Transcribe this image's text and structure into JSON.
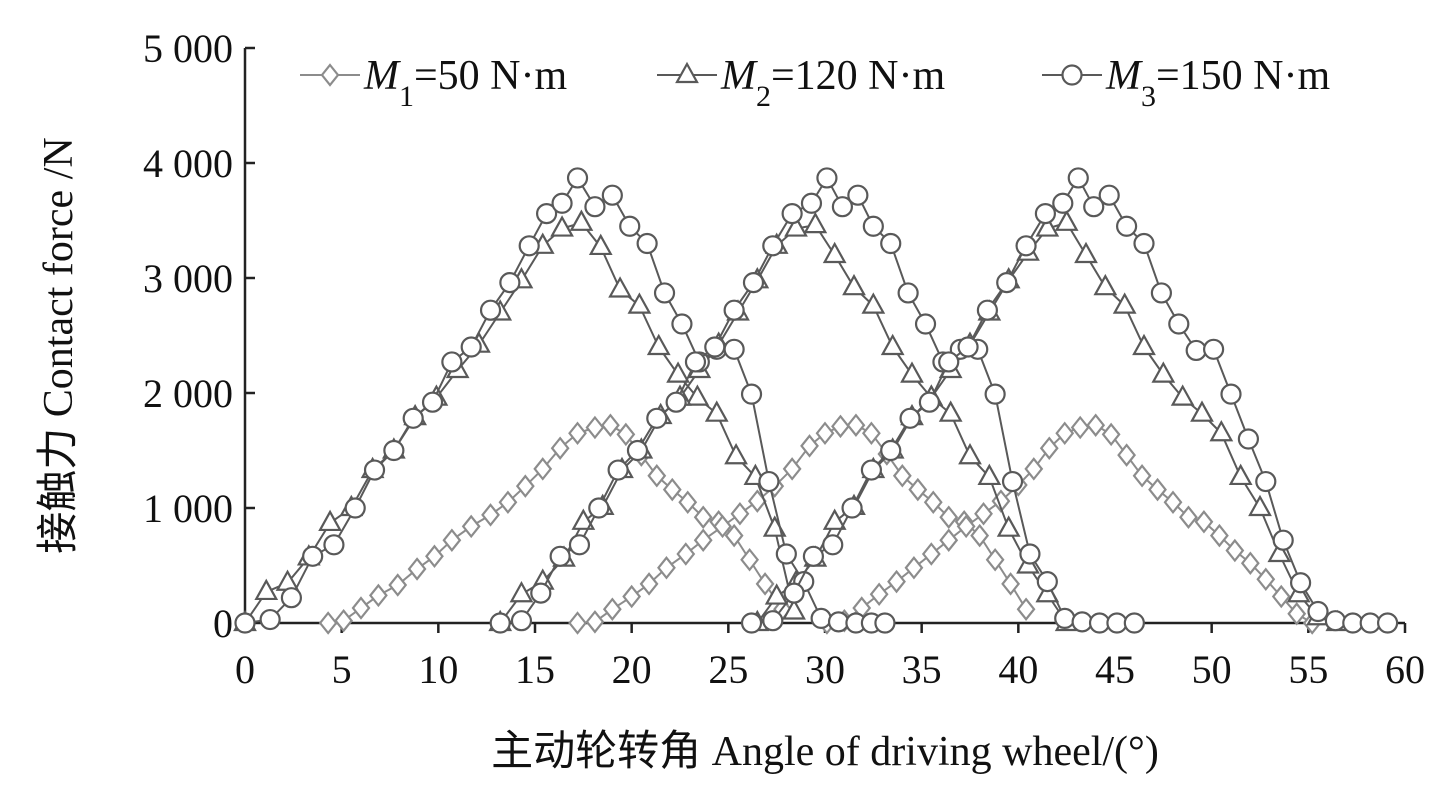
{
  "chart_data": {
    "type": "line",
    "title": "",
    "xlabel": "主动轮转角 Angle of driving wheel/(°)",
    "ylabel": "接触力 Contact force /N",
    "xlim": [
      0,
      60
    ],
    "ylim": [
      0,
      5000
    ],
    "x_ticks": [
      "0",
      "5",
      "10",
      "15",
      "20",
      "25",
      "30",
      "35",
      "40",
      "45",
      "50",
      "55",
      "60"
    ],
    "y_ticks": [
      "0",
      "1 000",
      "2 000",
      "3 000",
      "4 000",
      "5 000"
    ],
    "grid": false,
    "legend_position": "top",
    "series": [
      {
        "name": "M1=50 N·m",
        "legend": {
          "symbol": "M",
          "sub": "1",
          "rest": "=50 N·m"
        },
        "marker": "diamond",
        "color": "#8c8c8c",
        "teeth": [
          {
            "x": [
              4.3,
              5.1,
              6.0,
              6.9,
              7.9,
              8.9,
              9.8,
              10.7,
              11.7,
              12.7,
              13.6,
              14.5,
              15.4,
              16.3,
              17.2,
              18.1,
              18.9,
              19.7,
              20.5,
              21.3,
              22.1,
              22.9,
              23.7,
              24.5,
              25.3,
              26.1,
              26.9,
              27.8
            ],
            "y": [
              0,
              20,
              130,
              240,
              330,
              470,
              580,
              720,
              840,
              940,
              1050,
              1190,
              1340,
              1520,
              1650,
              1700,
              1720,
              1640,
              1460,
              1280,
              1160,
              1050,
              920,
              880,
              760,
              550,
              340,
              120
            ]
          },
          {
            "x": [
              17.2,
              18.1,
              19.0,
              20.0,
              20.9,
              21.8,
              22.8,
              23.7,
              24.7,
              25.6,
              26.5,
              27.4,
              28.3,
              29.2,
              30.0,
              30.8,
              31.6,
              32.4,
              33.2,
              34.0,
              34.8,
              35.6,
              36.4,
              37.2,
              38.0,
              38.8,
              39.6,
              40.4
            ],
            "y": [
              0,
              10,
              120,
              230,
              340,
              480,
              600,
              720,
              840,
              950,
              1060,
              1190,
              1340,
              1540,
              1650,
              1710,
              1720,
              1650,
              1470,
              1280,
              1160,
              1050,
              920,
              880,
              760,
              550,
              340,
              120
            ]
          },
          {
            "x": [
              30.1,
              31.0,
              31.9,
              32.8,
              33.7,
              34.6,
              35.5,
              36.4,
              37.3,
              38.2,
              39.1,
              40.0,
              40.8,
              41.6,
              42.4,
              43.2,
              44.0,
              44.8,
              45.6,
              46.4,
              47.2,
              48.0,
              48.8,
              49.6,
              50.4,
              51.2,
              52.0,
              52.8,
              53.6,
              54.4,
              55.2
            ],
            "y": [
              0,
              20,
              130,
              250,
              360,
              480,
              600,
              720,
              840,
              950,
              1060,
              1200,
              1340,
              1520,
              1650,
              1700,
              1720,
              1640,
              1460,
              1280,
              1160,
              1050,
              920,
              880,
              760,
              630,
              520,
              380,
              230,
              80,
              0
            ]
          }
        ]
      },
      {
        "name": "M2=120 N·m",
        "legend": {
          "symbol": "M",
          "sub": "2",
          "rest": "=120 N·m"
        },
        "marker": "triangle",
        "color": "#595959",
        "teeth": [
          {
            "x": [
              0.0,
              1.1,
              2.2,
              3.3,
              4.4,
              5.5,
              6.6,
              7.7,
              8.8,
              9.9,
              11.0,
              12.1,
              13.2,
              14.3,
              15.4,
              16.4,
              17.4,
              18.4,
              19.4,
              20.4,
              21.4,
              22.4,
              23.4,
              24.4,
              25.4,
              26.4,
              27.4,
              28.4
            ],
            "y": [
              0,
              270,
              350,
              570,
              870,
              1000,
              1330,
              1500,
              1790,
              1960,
              2200,
              2420,
              2700,
              2980,
              3280,
              3430,
              3480,
              3270,
              2900,
              2760,
              2400,
              2160,
              1960,
              1820,
              1450,
              1270,
              820,
              100
            ]
          },
          {
            "x": [
              13.2,
              14.3,
              15.4,
              16.5,
              17.5,
              18.5,
              19.5,
              20.5,
              21.5,
              22.5,
              23.5,
              24.5,
              25.5,
              26.5,
              27.5,
              28.5,
              29.5,
              30.5,
              31.5,
              32.5,
              33.5,
              34.5,
              35.5,
              36.5,
              37.5,
              38.5,
              39.5,
              40.5,
              41.5,
              42.5
            ],
            "y": [
              0,
              250,
              360,
              560,
              880,
              1010,
              1330,
              1500,
              1800,
              1960,
              2200,
              2420,
              2700,
              2980,
              3280,
              3430,
              3460,
              3200,
              2920,
              2760,
              2400,
              2160,
              1960,
              1820,
              1450,
              1270,
              820,
              500,
              250,
              0
            ]
          },
          {
            "x": [
              26.5,
              27.5,
              28.5,
              29.5,
              30.5,
              31.5,
              32.5,
              33.5,
              34.5,
              35.5,
              36.5,
              37.5,
              38.5,
              39.5,
              40.5,
              41.5,
              42.5,
              43.5,
              44.5,
              45.5,
              46.5,
              47.5,
              48.5,
              49.5,
              50.5,
              51.5,
              52.5,
              53.5,
              54.5,
              55.5,
              56.5
            ],
            "y": [
              0,
              230,
              350,
              560,
              880,
              1010,
              1330,
              1500,
              1790,
              1960,
              2200,
              2420,
              2700,
              2980,
              3220,
              3430,
              3480,
              3200,
              2920,
              2760,
              2400,
              2160,
              1960,
              1820,
              1650,
              1270,
              1000,
              600,
              250,
              50,
              0
            ]
          }
        ]
      },
      {
        "name": "M3=150 N·m",
        "legend": {
          "symbol": "M",
          "sub": "3",
          "rest": "=150 N·m"
        },
        "marker": "circle",
        "color": "#595959",
        "teeth": [
          {
            "x": [
              0.0,
              1.3,
              2.4,
              3.5,
              4.6,
              5.7,
              6.7,
              7.7,
              8.7,
              9.7,
              10.7,
              11.7,
              12.7,
              13.7,
              14.7,
              15.6,
              16.4,
              17.2,
              18.1,
              19.0,
              19.9,
              20.8,
              21.7,
              22.6,
              23.5,
              24.4,
              25.3,
              26.2,
              27.1,
              28.0,
              28.9,
              29.8,
              30.7,
              31.6,
              32.4,
              33.1
            ],
            "y": [
              0,
              30,
              220,
              580,
              680,
              1000,
              1330,
              1500,
              1780,
              1920,
              2270,
              2400,
              2720,
              2960,
              3280,
              3560,
              3650,
              3870,
              3620,
              3720,
              3450,
              3300,
              2870,
              2600,
              2270,
              2380,
              2380,
              1990,
              1230,
              600,
              360,
              40,
              10,
              0,
              0,
              0
            ]
          },
          {
            "x": [
              13.2,
              14.3,
              15.3,
              16.3,
              17.3,
              18.3,
              19.3,
              20.3,
              21.3,
              22.3,
              23.3,
              24.3,
              25.3,
              26.3,
              27.3,
              28.3,
              29.3,
              30.1,
              30.9,
              31.7,
              32.5,
              33.4,
              34.3,
              35.2,
              36.1,
              37.0,
              37.9,
              38.8,
              39.7,
              40.6,
              41.5,
              42.4,
              43.3,
              44.2,
              45.1,
              46.0
            ],
            "y": [
              0,
              20,
              260,
              580,
              680,
              1000,
              1330,
              1500,
              1780,
              1920,
              2270,
              2400,
              2720,
              2960,
              3280,
              3560,
              3650,
              3870,
              3620,
              3720,
              3450,
              3300,
              2870,
              2600,
              2270,
              2380,
              2380,
              1990,
              1230,
              600,
              360,
              40,
              10,
              0,
              0,
              0
            ]
          },
          {
            "x": [
              26.2,
              27.3,
              28.4,
              29.4,
              30.4,
              31.4,
              32.4,
              33.4,
              34.4,
              35.4,
              36.4,
              37.4,
              38.4,
              39.4,
              40.4,
              41.4,
              42.3,
              43.1,
              43.9,
              44.7,
              45.6,
              46.5,
              47.4,
              48.3,
              49.2,
              50.1,
              51.0,
              51.9,
              52.8,
              53.7,
              54.6,
              55.5,
              56.4,
              57.3,
              58.2,
              59.1
            ],
            "y": [
              0,
              20,
              260,
              580,
              680,
              1000,
              1330,
              1500,
              1780,
              1920,
              2270,
              2400,
              2720,
              2960,
              3280,
              3560,
              3650,
              3870,
              3620,
              3720,
              3450,
              3300,
              2870,
              2600,
              2370,
              2380,
              1990,
              1600,
              1230,
              720,
              350,
              100,
              20,
              0,
              0,
              0
            ]
          }
        ]
      }
    ]
  }
}
